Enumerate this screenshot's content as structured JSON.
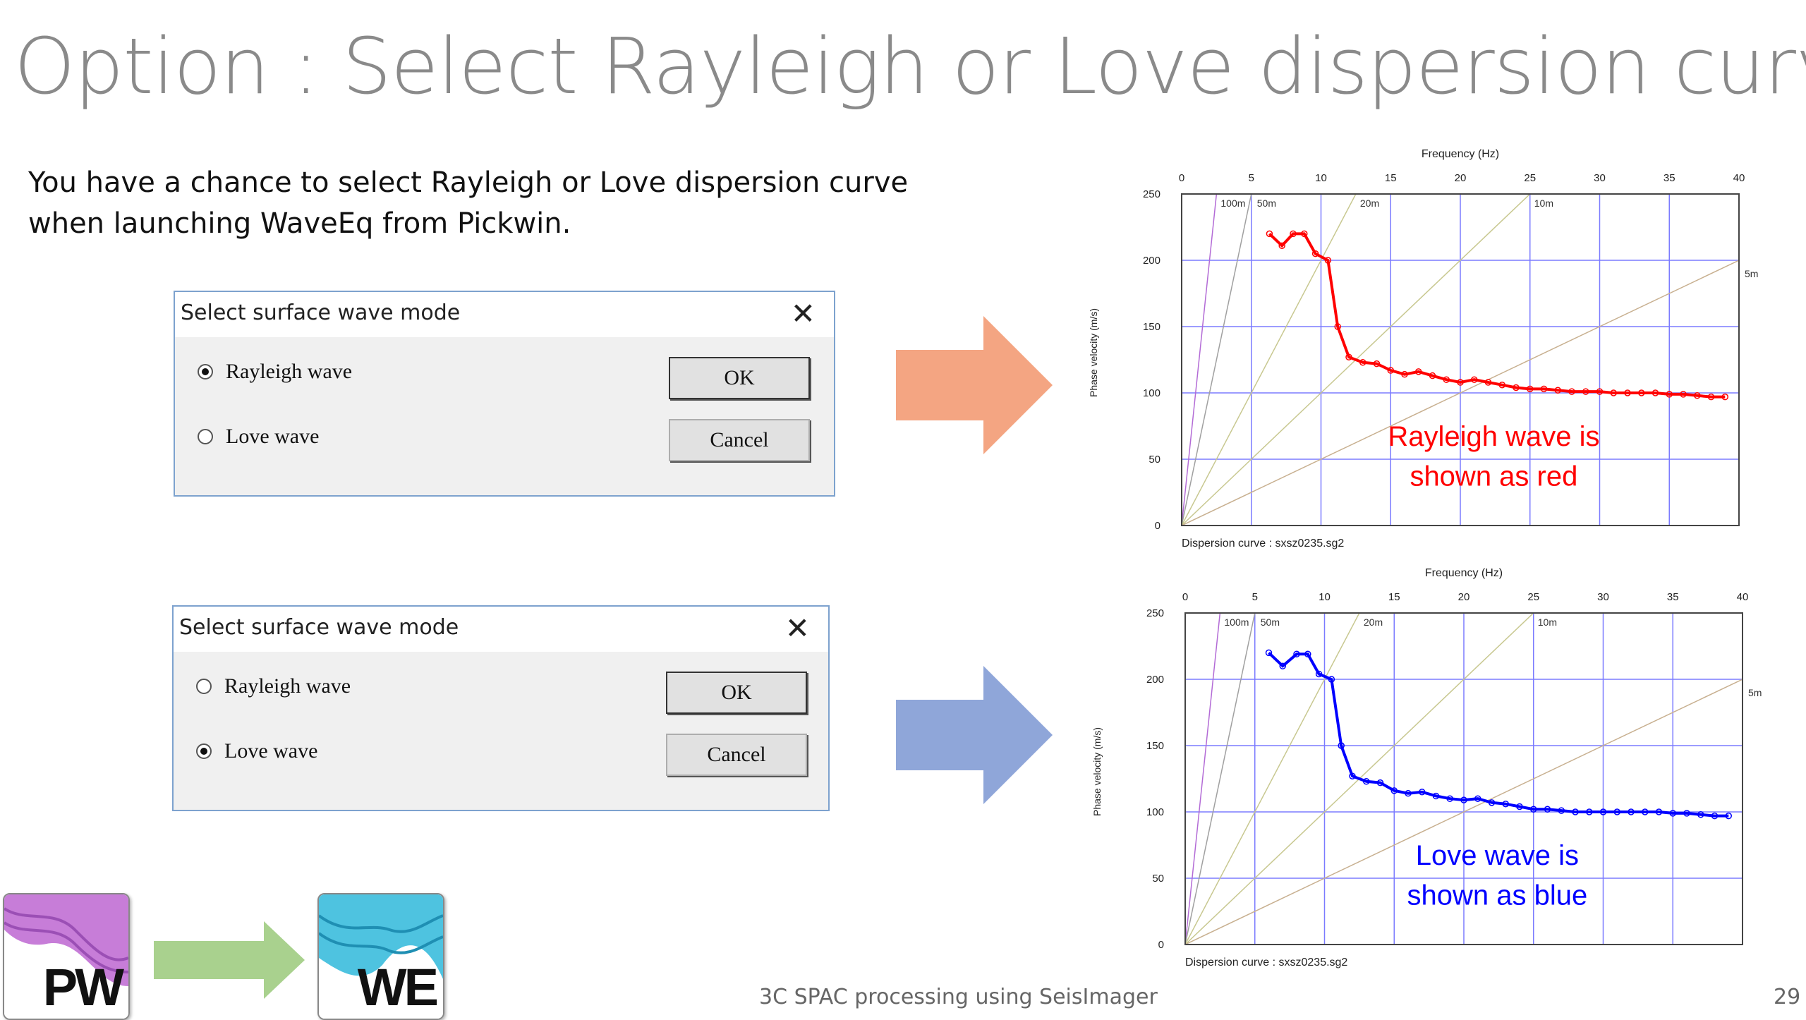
{
  "slide": {
    "title": "Option : Select Rayleigh or Love dispersion curve",
    "intro_line1": "You have a chance to select Rayleigh or Love dispersion curve",
    "intro_line2": "when launching WaveEq from Pickwin.",
    "footer": "3C SPAC processing using SeisImager",
    "page_number": "29"
  },
  "dialogs": [
    {
      "title": "Select surface wave mode",
      "close_glyph": "✕",
      "options": [
        {
          "label": "Rayleigh wave",
          "checked": true
        },
        {
          "label": "Love wave",
          "checked": false
        }
      ],
      "ok_label": "OK",
      "cancel_label": "Cancel"
    },
    {
      "title": "Select surface wave mode",
      "close_glyph": "✕",
      "options": [
        {
          "label": "Rayleigh wave",
          "checked": false
        },
        {
          "label": "Love wave",
          "checked": true
        }
      ],
      "ok_label": "OK",
      "cancel_label": "Cancel"
    }
  ],
  "arrows": {
    "top_color": "#f4a582",
    "bottom_color": "#8fa6d9",
    "logo_arrow_color": "#a9d18e"
  },
  "logos": {
    "pickwin": {
      "text": "PW",
      "color": "#c77dd8"
    },
    "waveeq": {
      "text": "WE",
      "color": "#4ec3e0"
    }
  },
  "chart_data": [
    {
      "type": "line",
      "title": "Frequency (Hz)",
      "xlabel": "Frequency (Hz)",
      "ylabel": "Phase velocity (m/s)",
      "xlim": [
        0,
        40
      ],
      "ylim": [
        0,
        250
      ],
      "xticks": [
        "0",
        "5",
        "10",
        "15",
        "20",
        "25",
        "30",
        "35",
        "40"
      ],
      "yticks": [
        "0",
        "50",
        "100",
        "150",
        "200",
        "250"
      ],
      "wavelength_lines": [
        "100m",
        "50m",
        "20m",
        "10m",
        "5m"
      ],
      "grid": true,
      "caption": "Dispersion curve : sxsz0235.sg2",
      "annotation_line1": "Rayleigh wave is",
      "annotation_line2": "shown as red",
      "color": "#ff0000",
      "series": [
        {
          "x": [
            6.3,
            7.2,
            8.0,
            8.8,
            9.6,
            10.5,
            11.2,
            12.0,
            13.0,
            14.0,
            15.0,
            16.0,
            17.0,
            18.0,
            19.0,
            20.0,
            21.0,
            22.0,
            23.0,
            24.0,
            25.0,
            26.0,
            27.0,
            28.0,
            29.0,
            30.0,
            31.0,
            32.0,
            33.0,
            34.0,
            35.0,
            36.0,
            37.0,
            38.0,
            39.0
          ],
          "y": [
            220,
            211,
            220,
            220,
            205,
            200,
            150,
            127,
            123,
            122,
            117,
            114,
            116,
            113,
            110,
            108,
            110,
            108,
            106,
            104,
            103,
            103,
            102,
            101,
            101,
            101,
            100,
            100,
            100,
            100,
            99,
            99,
            98,
            97,
            97
          ]
        }
      ]
    },
    {
      "type": "line",
      "title": "Frequency (Hz)",
      "xlabel": "Frequency (Hz)",
      "ylabel": "Phase velocity (m/s)",
      "xlim": [
        0,
        40
      ],
      "ylim": [
        0,
        250
      ],
      "xticks": [
        "0",
        "5",
        "10",
        "15",
        "20",
        "25",
        "30",
        "35",
        "40"
      ],
      "yticks": [
        "0",
        "50",
        "100",
        "150",
        "200",
        "250"
      ],
      "wavelength_lines": [
        "100m",
        "50m",
        "20m",
        "10m",
        "5m"
      ],
      "grid": true,
      "caption": "Dispersion curve : sxsz0235.sg2",
      "annotation_line1": "Love wave is",
      "annotation_line2": "shown as blue",
      "color": "#0000ff",
      "series": [
        {
          "x": [
            6.0,
            7.0,
            8.0,
            8.8,
            9.6,
            10.5,
            11.2,
            12.0,
            13.0,
            14.0,
            15.0,
            16.0,
            17.0,
            18.0,
            19.0,
            20.0,
            21.0,
            22.0,
            23.0,
            24.0,
            25.0,
            26.0,
            27.0,
            28.0,
            29.0,
            30.0,
            31.0,
            32.0,
            33.0,
            34.0,
            35.0,
            36.0,
            37.0,
            38.0,
            39.0
          ],
          "y": [
            220,
            210,
            219,
            219,
            204,
            200,
            150,
            127,
            123,
            122,
            116,
            114,
            115,
            112,
            110,
            109,
            110,
            107,
            106,
            104,
            102,
            102,
            101,
            100,
            100,
            100,
            100,
            100,
            100,
            100,
            99,
            99,
            98,
            97,
            97
          ]
        }
      ]
    }
  ]
}
